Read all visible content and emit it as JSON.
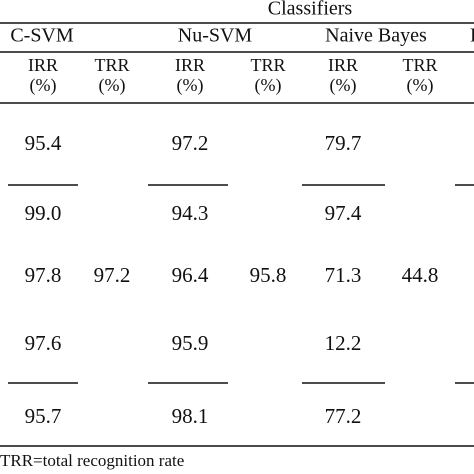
{
  "table": {
    "title": "Classifiers",
    "groups": [
      "C-SVM",
      "Nu-SVM",
      "Naive Bayes",
      "F"
    ],
    "subheaders": [
      [
        "IRR",
        "(%)"
      ],
      [
        "TRR",
        "(%)"
      ],
      [
        "IRR",
        "(%)"
      ],
      [
        "TRR",
        "(%)"
      ],
      [
        "IRR",
        "(%)"
      ],
      [
        "TRR",
        "(%)"
      ]
    ],
    "rows": [
      [
        "95.4",
        "97.2",
        "79.7"
      ],
      [
        "99.0",
        "94.3",
        "97.4"
      ],
      [
        "97.8",
        "96.4",
        "71.3"
      ],
      [
        "97.6",
        "95.9",
        "12.2"
      ],
      [
        "95.7",
        "98.1",
        "77.2"
      ]
    ],
    "trr": [
      "97.2",
      "95.8",
      "44.8"
    ],
    "footnote": "TRR=total recognition rate"
  }
}
